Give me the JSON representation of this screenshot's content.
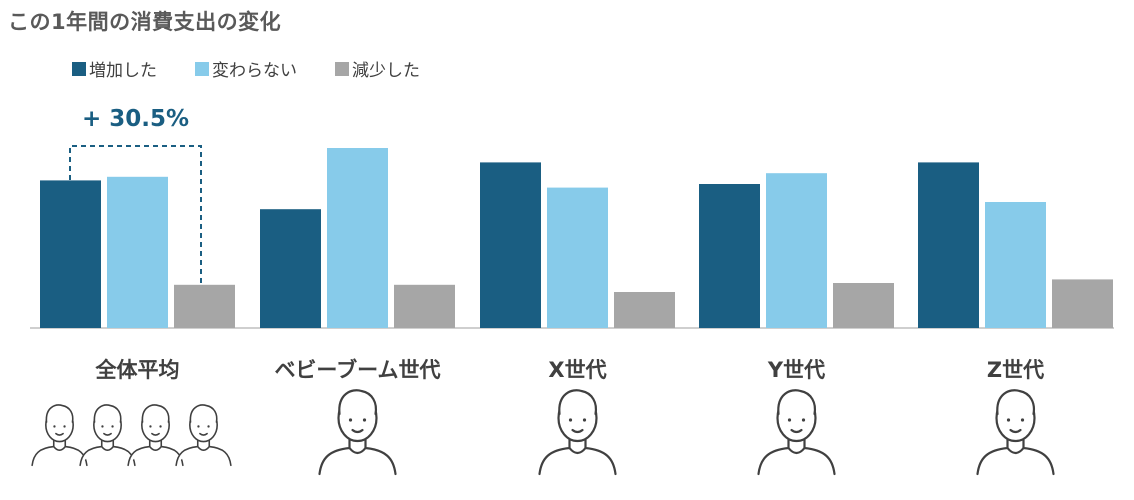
{
  "title": "この1年間の消費支出の変化",
  "legend": [
    {
      "label": "増加した",
      "color": "#1a5e82"
    },
    {
      "label": "変わらない",
      "color": "#87cbea"
    },
    {
      "label": "減少した",
      "color": "#a6a6a6"
    }
  ],
  "annotation": {
    "text": "+ 30.5%"
  },
  "chart_data": {
    "type": "bar",
    "categories": [
      "全体平均",
      "ベビーブーム世代",
      "X世代",
      "Y世代",
      "Z世代"
    ],
    "series": [
      {
        "name": "増加した",
        "color": "#1a5e82",
        "values": [
          41,
          33,
          46,
          40,
          46
        ]
      },
      {
        "name": "変わらない",
        "color": "#87cbea",
        "values": [
          42,
          50,
          39,
          43,
          35
        ]
      },
      {
        "name": "減少した",
        "color": "#a6a6a6",
        "values": [
          12,
          12,
          10,
          12.5,
          13.5
        ]
      }
    ],
    "ylim": [
      0,
      50
    ],
    "xlabel": "",
    "ylabel": "",
    "grid": false,
    "legend_position": "top-left"
  },
  "icons": [
    "family-group-icon",
    "elderly-man-icon",
    "middle-aged-woman-icon",
    "young-mother-with-baby-icon",
    "young-man-icon"
  ]
}
